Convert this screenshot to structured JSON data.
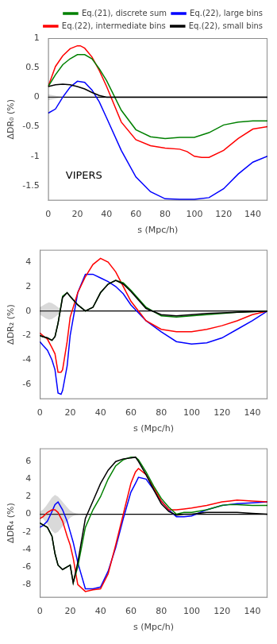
{
  "chart_data": [
    {
      "type": "line",
      "xlabel": "s (Mpc/h)",
      "ylabel": "ΔDR₀ (%)",
      "xlim": [
        0,
        150
      ],
      "xticks": [
        0,
        20,
        40,
        60,
        80,
        100,
        120,
        140
      ],
      "ylim": [
        -1.75,
        1.0
      ],
      "yticks": [
        -1.5,
        -1,
        -0.5,
        0,
        0.5,
        1
      ],
      "grid": false,
      "legend": "upper right",
      "annotation": "VIPERS",
      "reference_line": {
        "y": 0,
        "color": "black"
      },
      "band": {
        "color": "gray",
        "x": [
          0,
          2,
          4,
          6,
          8,
          10,
          12
        ],
        "upper": [
          0.05,
          0.04,
          0.03,
          0.02,
          0.01,
          0.005,
          0.0
        ],
        "lower": [
          -0.05,
          -0.04,
          -0.03,
          -0.02,
          -0.01,
          -0.005,
          0.0
        ]
      },
      "series": [
        {
          "name": "Eq.(21), discrete sum",
          "color": "green",
          "x": [
            0,
            5,
            10,
            15,
            20,
            25,
            30,
            35,
            40,
            50,
            60,
            70,
            80,
            90,
            100,
            110,
            120,
            130,
            140,
            150
          ],
          "values": [
            0.18,
            0.38,
            0.55,
            0.65,
            0.72,
            0.72,
            0.65,
            0.48,
            0.28,
            -0.22,
            -0.55,
            -0.67,
            -0.7,
            -0.68,
            -0.68,
            -0.6,
            -0.47,
            -0.42,
            -0.4,
            -0.4
          ]
        },
        {
          "name": "Eq.(22), large bins",
          "color": "blue",
          "x": [
            0,
            5,
            10,
            15,
            20,
            25,
            30,
            35,
            40,
            50,
            60,
            70,
            80,
            90,
            100,
            110,
            120,
            130,
            140,
            150
          ],
          "values": [
            -0.27,
            -0.2,
            0.0,
            0.17,
            0.27,
            0.25,
            0.12,
            -0.08,
            -0.35,
            -0.9,
            -1.35,
            -1.6,
            -1.72,
            -1.73,
            -1.73,
            -1.7,
            -1.55,
            -1.3,
            -1.1,
            -1.0
          ]
        },
        {
          "name": "Eq.(22), intermediate bins",
          "color": "red",
          "x": [
            0,
            5,
            10,
            15,
            20,
            22,
            25,
            30,
            35,
            40,
            50,
            60,
            70,
            80,
            90,
            95,
            100,
            105,
            110,
            120,
            130,
            140,
            150
          ],
          "values": [
            0.18,
            0.52,
            0.7,
            0.82,
            0.87,
            0.87,
            0.83,
            0.68,
            0.45,
            0.18,
            -0.42,
            -0.72,
            -0.82,
            -0.86,
            -0.88,
            -0.92,
            -1.0,
            -1.02,
            -1.02,
            -0.9,
            -0.7,
            -0.54,
            -0.5
          ]
        },
        {
          "name": "Eq.(22), small bins",
          "color": "black",
          "x": [
            0,
            5,
            10,
            15,
            20,
            25,
            30,
            35,
            40,
            50,
            60,
            70,
            80,
            90,
            100,
            110,
            120,
            130,
            140,
            150
          ],
          "values": [
            0.18,
            0.21,
            0.22,
            0.21,
            0.18,
            0.14,
            0.08,
            0.03,
            0.0,
            0.0,
            0.0,
            0.0,
            0.0,
            0.0,
            0.0,
            0.0,
            0.0,
            0.0,
            0.0,
            0.0
          ]
        }
      ]
    },
    {
      "type": "line",
      "xlabel": "s (Mpc/h)",
      "ylabel": "ΔDR₂ (%)",
      "xlim": [
        0,
        150
      ],
      "xticks": [
        0,
        20,
        40,
        60,
        80,
        100,
        120,
        140
      ],
      "ylim": [
        -7.2,
        5.0
      ],
      "yticks": [
        -6,
        -4,
        -2,
        0,
        2,
        4
      ],
      "grid": false,
      "reference_line": {
        "y": 0,
        "color": "black"
      },
      "band": {
        "color": "gray",
        "x": [
          0,
          2,
          4,
          6,
          8,
          10,
          12,
          14,
          16
        ],
        "upper": [
          0.3,
          0.45,
          0.6,
          0.7,
          0.65,
          0.5,
          0.3,
          0.1,
          0.0
        ],
        "lower": [
          -0.3,
          -0.45,
          -0.6,
          -0.7,
          -0.65,
          -0.5,
          -0.3,
          -0.1,
          0.0
        ]
      },
      "series": [
        {
          "color": "green",
          "x": [
            0,
            2,
            5,
            8,
            10,
            12,
            15,
            18,
            20,
            25,
            30,
            35,
            40,
            45,
            50,
            55,
            60,
            70,
            80,
            90,
            100,
            110,
            120,
            130,
            140,
            150
          ],
          "values": [
            -2.0,
            -2.1,
            -2.2,
            -2.4,
            -2.1,
            -1.0,
            1.2,
            1.5,
            1.2,
            0.5,
            0.0,
            0.3,
            1.5,
            2.2,
            2.5,
            2.3,
            1.7,
            0.3,
            -0.4,
            -0.5,
            -0.4,
            -0.3,
            -0.2,
            -0.1,
            -0.05,
            0.0
          ]
        },
        {
          "color": "blue",
          "x": [
            0,
            2,
            5,
            8,
            10,
            12,
            14,
            15,
            18,
            20,
            25,
            30,
            35,
            40,
            45,
            50,
            55,
            60,
            70,
            80,
            90,
            100,
            110,
            120,
            130,
            140,
            150
          ],
          "values": [
            -2.5,
            -2.8,
            -3.2,
            -4.0,
            -4.8,
            -6.7,
            -6.8,
            -6.5,
            -4.5,
            -2.0,
            1.5,
            3.0,
            3.0,
            2.7,
            2.4,
            2.0,
            1.4,
            0.5,
            -0.8,
            -1.7,
            -2.5,
            -2.7,
            -2.6,
            -2.2,
            -1.5,
            -0.8,
            0.0
          ]
        },
        {
          "color": "red",
          "x": [
            0,
            2,
            5,
            8,
            10,
            12,
            14,
            15,
            18,
            20,
            25,
            30,
            35,
            40,
            45,
            50,
            55,
            60,
            70,
            80,
            90,
            100,
            110,
            120,
            130,
            140,
            150
          ],
          "values": [
            -1.8,
            -2.0,
            -2.3,
            -3.0,
            -3.5,
            -5.0,
            -5.0,
            -4.8,
            -2.5,
            -0.5,
            1.5,
            2.8,
            3.8,
            4.3,
            4.0,
            3.2,
            2.0,
            0.8,
            -0.8,
            -1.5,
            -1.7,
            -1.7,
            -1.5,
            -1.2,
            -0.8,
            -0.3,
            0.0
          ]
        },
        {
          "color": "black",
          "x": [
            0,
            2,
            5,
            8,
            10,
            12,
            15,
            18,
            20,
            25,
            30,
            35,
            40,
            45,
            50,
            55,
            60,
            70,
            80,
            90,
            100,
            110,
            120,
            130,
            140,
            150
          ],
          "values": [
            -2.0,
            -2.1,
            -2.2,
            -2.4,
            -2.1,
            -1.0,
            1.1,
            1.5,
            1.2,
            0.5,
            0.0,
            0.3,
            1.5,
            2.2,
            2.5,
            2.2,
            1.6,
            0.2,
            -0.3,
            -0.4,
            -0.3,
            -0.2,
            -0.15,
            -0.1,
            -0.05,
            0.0
          ]
        }
      ]
    },
    {
      "type": "line",
      "xlabel": "s (Mpc/h)",
      "ylabel": "ΔDR₄ (%)",
      "xlim": [
        0,
        150
      ],
      "xticks": [
        0,
        20,
        40,
        60,
        80,
        100,
        120,
        140
      ],
      "ylim": [
        -9.5,
        7.5
      ],
      "yticks": [
        -8,
        -6,
        -4,
        -2,
        0,
        2,
        4,
        6
      ],
      "grid": false,
      "reference_line": {
        "y": 0,
        "color": "black"
      },
      "band": {
        "color": "gray",
        "x": [
          0,
          2,
          4,
          6,
          8,
          10,
          12,
          14,
          16,
          18,
          20,
          22,
          24,
          26,
          28,
          30,
          35
        ],
        "upper": [
          0.3,
          0.5,
          0.9,
          1.4,
          1.9,
          2.2,
          2.0,
          1.6,
          1.2,
          0.8,
          0.4,
          0.2,
          0.1,
          0.05,
          0.02,
          0.01,
          0.0
        ],
        "lower": [
          -0.3,
          -0.5,
          -0.9,
          -1.4,
          -1.9,
          -2.2,
          -2.0,
          -1.6,
          -1.2,
          -0.8,
          -0.4,
          -0.2,
          -0.1,
          -0.05,
          -0.02,
          -0.01,
          0.0
        ]
      },
      "series": [
        {
          "color": "green",
          "x": [
            0,
            2,
            5,
            8,
            10,
            12,
            15,
            18,
            20,
            22,
            25,
            30,
            35,
            40,
            45,
            50,
            55,
            60,
            63,
            65,
            70,
            75,
            80,
            85,
            90,
            95,
            100,
            110,
            120,
            125,
            130,
            140,
            150
          ],
          "values": [
            -1.0,
            -1.2,
            -1.5,
            -2.5,
            -4.5,
            -5.8,
            -6.3,
            -6.0,
            -5.8,
            -7.8,
            -6.0,
            -1.5,
            0.5,
            2.0,
            4.0,
            5.5,
            6.2,
            6.5,
            6.5,
            6.2,
            4.8,
            3.2,
            1.8,
            0.8,
            0.0,
            0.2,
            0.2,
            0.5,
            1.0,
            1.1,
            1.1,
            1.0,
            1.0
          ]
        },
        {
          "color": "blue",
          "x": [
            0,
            2,
            5,
            8,
            10,
            12,
            15,
            18,
            20,
            22,
            25,
            30,
            35,
            40,
            45,
            50,
            55,
            60,
            63,
            65,
            70,
            75,
            80,
            85,
            90,
            95,
            100,
            110,
            120,
            125,
            130,
            140,
            150
          ],
          "values": [
            -1.5,
            -1.3,
            -0.8,
            0.3,
            1.1,
            1.4,
            0.5,
            -0.8,
            -2.0,
            -3.2,
            -5.5,
            -8.5,
            -8.5,
            -8.3,
            -6.5,
            -3.8,
            -0.5,
            2.5,
            3.5,
            4.2,
            4.0,
            2.8,
            1.5,
            0.5,
            -0.3,
            -0.3,
            -0.2,
            0.5,
            1.0,
            1.1,
            1.2,
            1.3,
            1.4
          ]
        },
        {
          "color": "red",
          "x": [
            0,
            2,
            5,
            8,
            10,
            12,
            15,
            18,
            20,
            22,
            25,
            30,
            35,
            40,
            45,
            50,
            55,
            60,
            63,
            65,
            70,
            75,
            80,
            85,
            90,
            95,
            100,
            110,
            120,
            125,
            130,
            140,
            150
          ],
          "values": [
            -0.5,
            -0.3,
            0.2,
            0.5,
            0.5,
            0.2,
            -0.8,
            -2.5,
            -3.5,
            -5.0,
            -8.0,
            -8.8,
            -8.6,
            -8.5,
            -6.8,
            -3.5,
            0.0,
            3.5,
            4.8,
            5.2,
            4.5,
            3.0,
            1.5,
            0.5,
            0.5,
            0.6,
            0.7,
            1.0,
            1.4,
            1.5,
            1.6,
            1.5,
            1.4
          ]
        },
        {
          "color": "black",
          "x": [
            0,
            2,
            5,
            8,
            10,
            12,
            15,
            18,
            20,
            22,
            25,
            30,
            35,
            40,
            45,
            50,
            55,
            60,
            63,
            65,
            70,
            75,
            80,
            85,
            90,
            95,
            100,
            110,
            120,
            125,
            130,
            140,
            150
          ],
          "values": [
            -1.0,
            -1.2,
            -1.5,
            -2.5,
            -4.5,
            -5.8,
            -6.3,
            -6.0,
            -5.8,
            -7.8,
            -5.5,
            -0.5,
            1.5,
            3.5,
            5.0,
            6.0,
            6.3,
            6.4,
            6.5,
            6.0,
            4.5,
            2.8,
            1.2,
            0.3,
            -0.1,
            0.0,
            0.0,
            0.2,
            0.2,
            0.2,
            0.2,
            0.1,
            0.0
          ]
        }
      ]
    }
  ]
}
